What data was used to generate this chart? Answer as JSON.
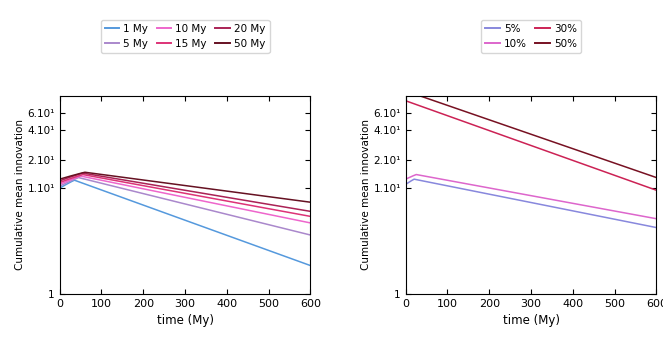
{
  "left_legend": [
    {
      "label": "1 My",
      "color": "#5599dd"
    },
    {
      "label": "5 My",
      "color": "#aa88cc"
    },
    {
      "label": "10 My",
      "color": "#ee66cc"
    },
    {
      "label": "15 My",
      "color": "#dd3377"
    },
    {
      "label": "20 My",
      "color": "#aa2255"
    },
    {
      "label": "50 My",
      "color": "#661122"
    }
  ],
  "right_legend": [
    {
      "label": "5%",
      "color": "#8888dd"
    },
    {
      "label": "10%",
      "color": "#dd66cc"
    },
    {
      "label": "30%",
      "color": "#cc2255"
    },
    {
      "label": "50%",
      "color": "#771122"
    }
  ],
  "left_curves": {
    "1 My": {
      "v0": 11.0,
      "peak": 13.2,
      "peak_t": 35,
      "v600": 1.9,
      "concave": true
    },
    "5 My": {
      "v0": 11.5,
      "peak": 14.0,
      "peak_t": 45,
      "v600": 3.8,
      "concave": true
    },
    "10 My": {
      "v0": 12.0,
      "peak": 14.5,
      "peak_t": 50,
      "v600": 5.0,
      "concave": true
    },
    "15 My": {
      "v0": 12.5,
      "peak": 15.0,
      "peak_t": 55,
      "v600": 5.8,
      "concave": true
    },
    "20 My": {
      "v0": 13.0,
      "peak": 15.5,
      "peak_t": 55,
      "v600": 6.5,
      "concave": true
    },
    "50 My": {
      "v0": 13.5,
      "peak": 15.8,
      "peak_t": 60,
      "v600": 8.0,
      "concave": true
    }
  },
  "right_curves": {
    "5%": {
      "v0": 12.0,
      "peak": 13.5,
      "peak_t": 20,
      "v600": 4.5,
      "concave": true
    },
    "10%": {
      "v0": 13.5,
      "peak": 15.0,
      "peak_t": 25,
      "v600": 5.5,
      "concave": true
    },
    "30%": {
      "v0": 80.0,
      "peak": 80.0,
      "peak_t": 0,
      "v600": 10.5,
      "concave": false
    },
    "50%": {
      "v0": 100.0,
      "peak": 100.0,
      "peak_t": 0,
      "v600": 14.0,
      "concave": false
    }
  },
  "xlabel": "time (My)",
  "ylabel": "Cumulative mean innovation",
  "xlim": [
    0,
    600
  ],
  "ylim": [
    1.0,
    90
  ],
  "ytick_positions": [
    1.0,
    11.0,
    21.0,
    41.0,
    61.0
  ],
  "ytick_labels": [
    "1",
    "1.10¹",
    "2.10¹",
    "4.10¹",
    "6.10¹"
  ],
  "xticks": [
    0,
    100,
    200,
    300,
    400,
    500,
    600
  ]
}
